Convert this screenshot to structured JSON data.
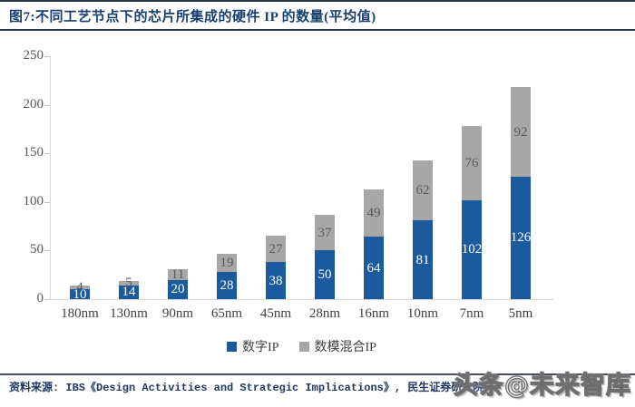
{
  "header": {
    "title": "图7:不同工艺节点下的芯片所集成的硬件 IP 的数量(平均值)"
  },
  "chart_data": {
    "type": "bar",
    "stacked": true,
    "title": "图7:不同工艺节点下的芯片所集成的硬件 IP 的数量(平均值)",
    "categories": [
      "180nm",
      "130nm",
      "90nm",
      "65nm",
      "45nm",
      "28nm",
      "16nm",
      "10nm",
      "7nm",
      "5nm"
    ],
    "series": [
      {
        "name": "数字IP",
        "color": "#1b5a9c",
        "label_color": "#ffffff",
        "values": [
          10,
          14,
          20,
          28,
          38,
          50,
          64,
          81,
          102,
          126
        ]
      },
      {
        "name": "数模混合IP",
        "color": "#a7a7a7",
        "label_color": "#595959",
        "values": [
          4,
          5,
          11,
          19,
          27,
          37,
          49,
          62,
          76,
          92
        ]
      }
    ],
    "totals": [
      14,
      19,
      31,
      47,
      65,
      87,
      113,
      143,
      178,
      218
    ],
    "xlabel": "",
    "ylabel": "",
    "ylim": [
      0,
      250
    ],
    "yticks": [
      0,
      50,
      100,
      150,
      200,
      250
    ],
    "grid": false,
    "legend_position": "bottom"
  },
  "footer": {
    "source": "资料来源: IBS《Design Activities and Strategic Implications》, 民生证券研究院",
    "watermark": "头条@未来智库"
  }
}
